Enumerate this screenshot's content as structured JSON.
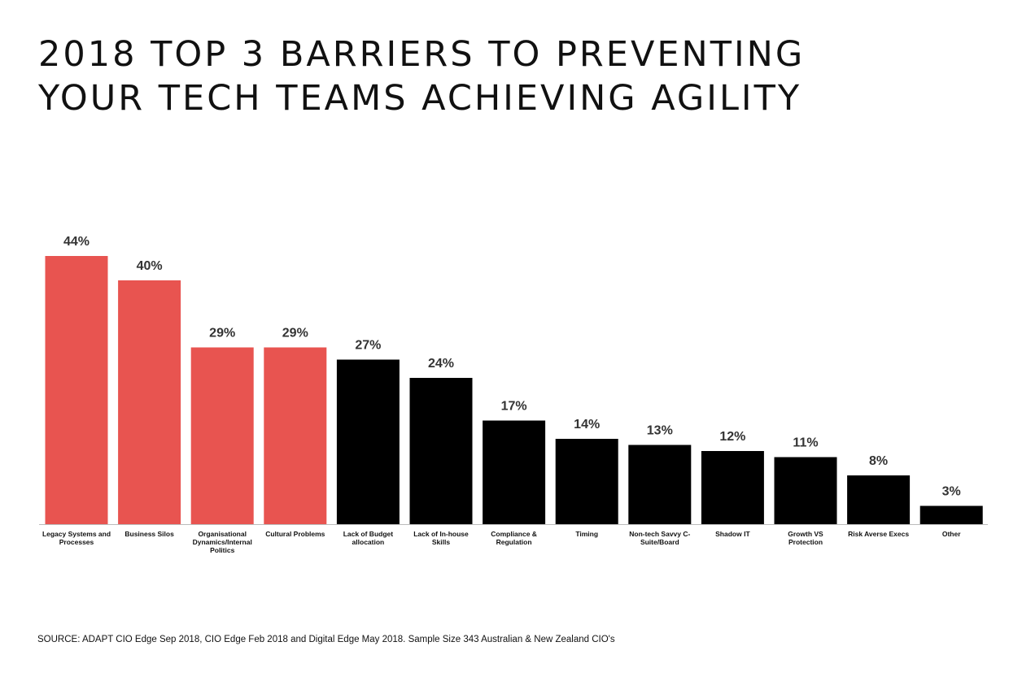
{
  "title_lines": [
    "2018 TOP 3 BARRIERS TO PREVENTING",
    "YOUR TECH TEAMS ACHIEVING AGILITY"
  ],
  "source": "SOURCE: ADAPT CIO Edge Sep 2018, CIO Edge Feb 2018 and Digital Edge May 2018. Sample Size 343 Australian & New Zealand CIO's",
  "colors": {
    "highlight": "#e85450",
    "default": "#000000",
    "axis": "#bbbbbb"
  },
  "chart_data": {
    "type": "bar",
    "title": "2018 TOP 3 BARRIERS TO PREVENTING YOUR TECH TEAMS ACHIEVING AGILITY",
    "xlabel": "",
    "ylabel": "",
    "ylim": [
      0,
      44
    ],
    "unit": "%",
    "grid": false,
    "legend": "none",
    "categories": [
      [
        "Legacy Systems and",
        "Processes"
      ],
      [
        "Business  Silos"
      ],
      [
        "Organisational",
        "Dynamics/Internal",
        "Politics"
      ],
      [
        "Cultural  Problems"
      ],
      [
        "Lack of Budget",
        "allocation"
      ],
      [
        "Lack of In-house",
        "Skills"
      ],
      [
        "Compliance  &",
        "Regulation"
      ],
      [
        "Timing"
      ],
      [
        "Non-tech Savvy C-",
        "Suite/Board"
      ],
      [
        "Shadow IT"
      ],
      [
        "Growth VS",
        "Protection"
      ],
      [
        "Risk  Averse Execs"
      ],
      [
        "Other"
      ]
    ],
    "values": [
      44,
      40,
      29,
      29,
      27,
      24,
      17,
      14,
      13,
      12,
      11,
      8,
      3
    ],
    "value_labels": [
      "44%",
      "40%",
      "29%",
      "29%",
      "27%",
      "24%",
      "17%",
      "14%",
      "13%",
      "12%",
      "11%",
      "8%",
      "3%"
    ],
    "highlighted": [
      true,
      true,
      true,
      true,
      false,
      false,
      false,
      false,
      false,
      false,
      false,
      false,
      false
    ]
  }
}
